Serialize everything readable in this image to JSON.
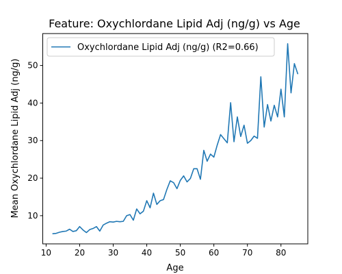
{
  "chart_data": {
    "type": "line",
    "title": "Feature: Oxychlordane Lipid Adj (ng/g) vs Age",
    "xlabel": "Age",
    "ylabel": "Mean Oxychlordane Lipid Adj (ng/g)",
    "xlim": [
      9,
      88
    ],
    "ylim": [
      2.5,
      58.5
    ],
    "xticks": [
      10,
      20,
      30,
      40,
      50,
      60,
      70,
      80
    ],
    "yticks": [
      10,
      20,
      30,
      40,
      50
    ],
    "grid": false,
    "legend_position": "upper-left",
    "series": [
      {
        "name": "Oxychlordane Lipid Adj (ng/g) (R2=0.66)",
        "color": "#1f77b4",
        "x": [
          12,
          13,
          14,
          15,
          16,
          17,
          18,
          19,
          20,
          21,
          22,
          23,
          24,
          25,
          26,
          27,
          28,
          29,
          30,
          31,
          32,
          33,
          34,
          35,
          36,
          37,
          38,
          39,
          40,
          41,
          42,
          43,
          44,
          45,
          46,
          47,
          48,
          49,
          50,
          51,
          52,
          53,
          54,
          55,
          56,
          57,
          58,
          59,
          60,
          61,
          62,
          63,
          64,
          65,
          66,
          67,
          68,
          69,
          70,
          71,
          72,
          73,
          74,
          75,
          76,
          77,
          78,
          79,
          80,
          81,
          82,
          83,
          84,
          85
        ],
        "y": [
          5.2,
          5.3,
          5.6,
          5.8,
          5.9,
          6.4,
          5.8,
          6.0,
          7.1,
          6.2,
          5.5,
          6.3,
          6.6,
          7.1,
          5.9,
          7.5,
          8.0,
          8.4,
          8.3,
          8.5,
          8.4,
          8.5,
          10.0,
          10.3,
          8.8,
          11.8,
          10.5,
          11.2,
          14.0,
          12.1,
          16.0,
          13.0,
          14.0,
          14.3,
          17.0,
          19.3,
          18.8,
          17.2,
          19.4,
          20.6,
          19.0,
          19.9,
          22.5,
          22.5,
          19.7,
          27.4,
          24.5,
          26.4,
          25.6,
          28.8,
          31.6,
          30.5,
          29.4,
          40.1,
          29.7,
          36.3,
          31.1,
          34.1,
          29.3,
          30.0,
          31.2,
          30.6,
          47.0,
          33.6,
          39.6,
          35.2,
          39.4,
          36.3,
          43.7,
          36.3,
          55.8,
          42.7,
          50.5,
          47.8
        ]
      }
    ]
  }
}
